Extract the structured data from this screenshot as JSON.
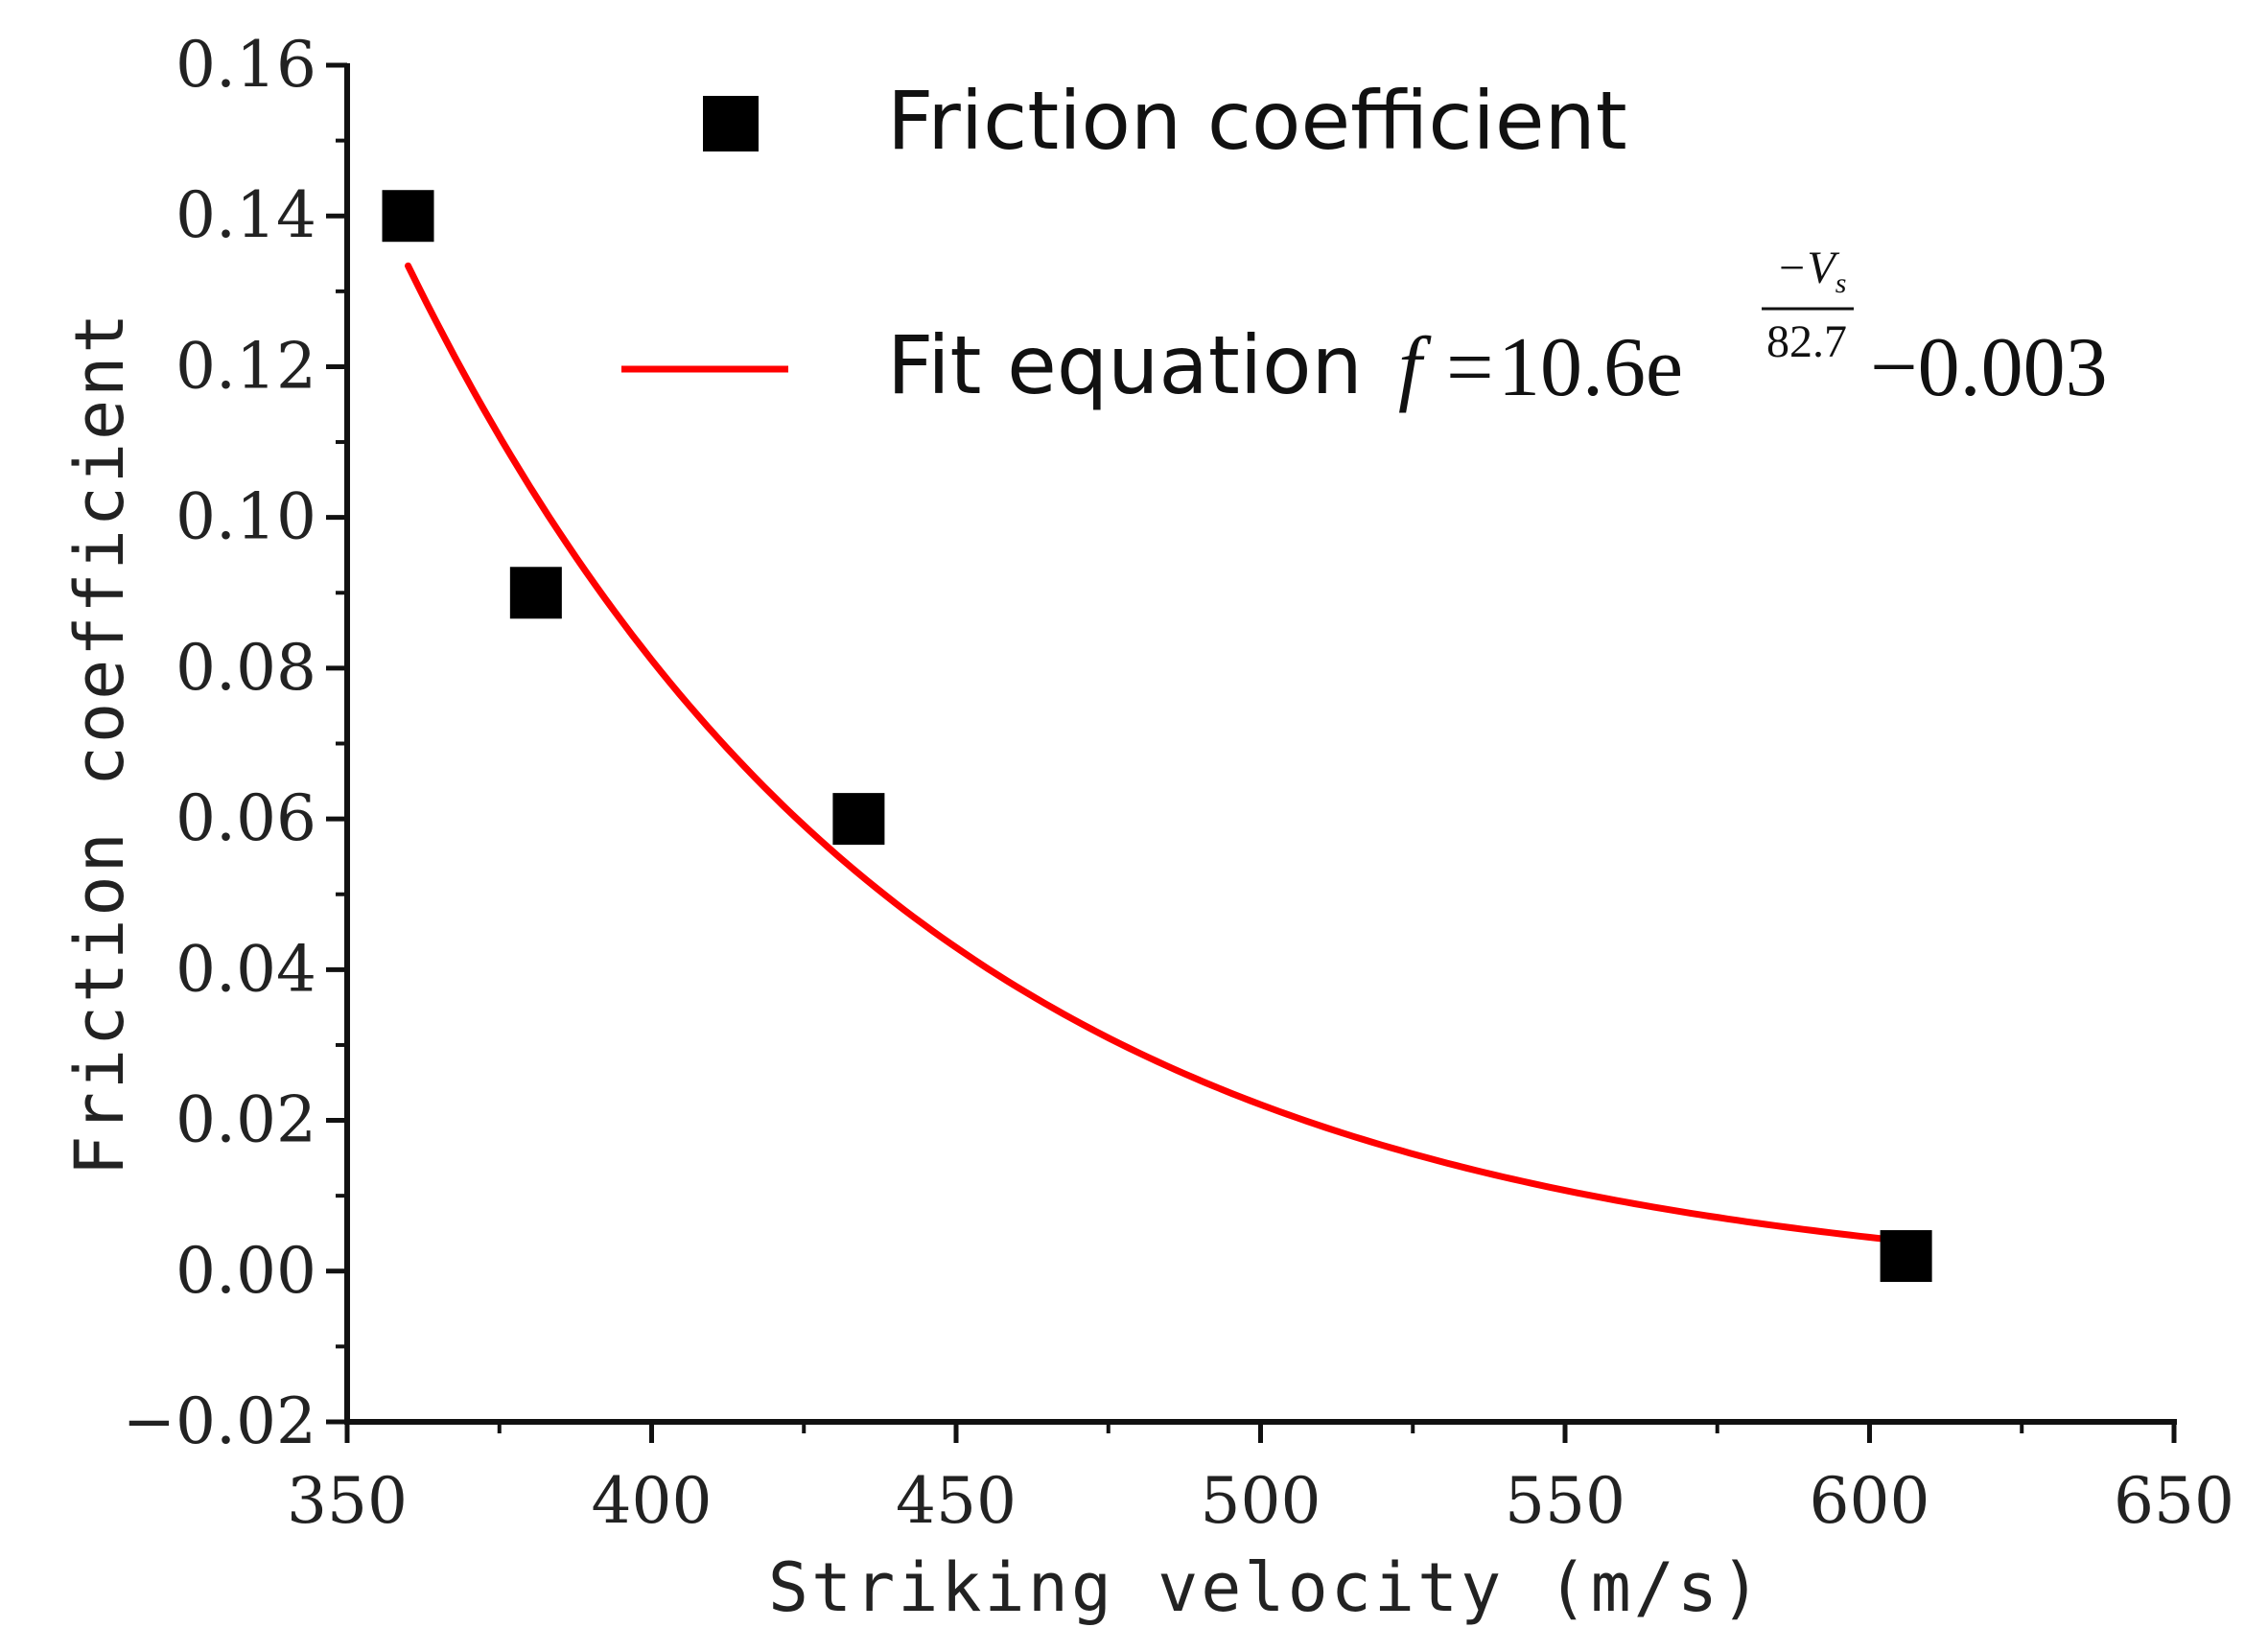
{
  "chart_data": {
    "type": "scatter",
    "title": "",
    "xlabel": "Striking velocity (m/s)",
    "ylabel": "Friction coefficient",
    "xlim": [
      350,
      650
    ],
    "ylim": [
      -0.02,
      0.16
    ],
    "x_ticks": [
      350,
      400,
      450,
      500,
      550,
      600,
      650
    ],
    "y_ticks": [
      -0.02,
      0.0,
      0.02,
      0.04,
      0.06,
      0.08,
      0.1,
      0.12,
      0.14,
      0.16
    ],
    "x_tick_labels": [
      "350",
      "400",
      "450",
      "500",
      "550",
      "600",
      "650"
    ],
    "y_tick_labels": [
      "−0.02",
      "0.00",
      "0.02",
      "0.04",
      "0.06",
      "0.08",
      "0.10",
      "0.12",
      "0.14",
      "0.16"
    ],
    "grid": false,
    "legend_position": "top",
    "series": [
      {
        "name": "Friction coefficient",
        "kind": "scatter",
        "marker": "square",
        "color": "#000000",
        "x": [
          360,
          381,
          434,
          606
        ],
        "y": [
          0.14,
          0.09,
          0.06,
          0.002
        ]
      },
      {
        "name": "Fit equation",
        "kind": "line",
        "color": "#ff0000",
        "x_range": [
          360,
          606
        ],
        "equation": {
          "f": "f",
          "equals": "=",
          "coefficient": "10.6e",
          "exponent_numerator": "−V",
          "exponent_subscript": "s",
          "exponent_denominator": "82.7",
          "offset": "−0.003"
        }
      }
    ]
  }
}
